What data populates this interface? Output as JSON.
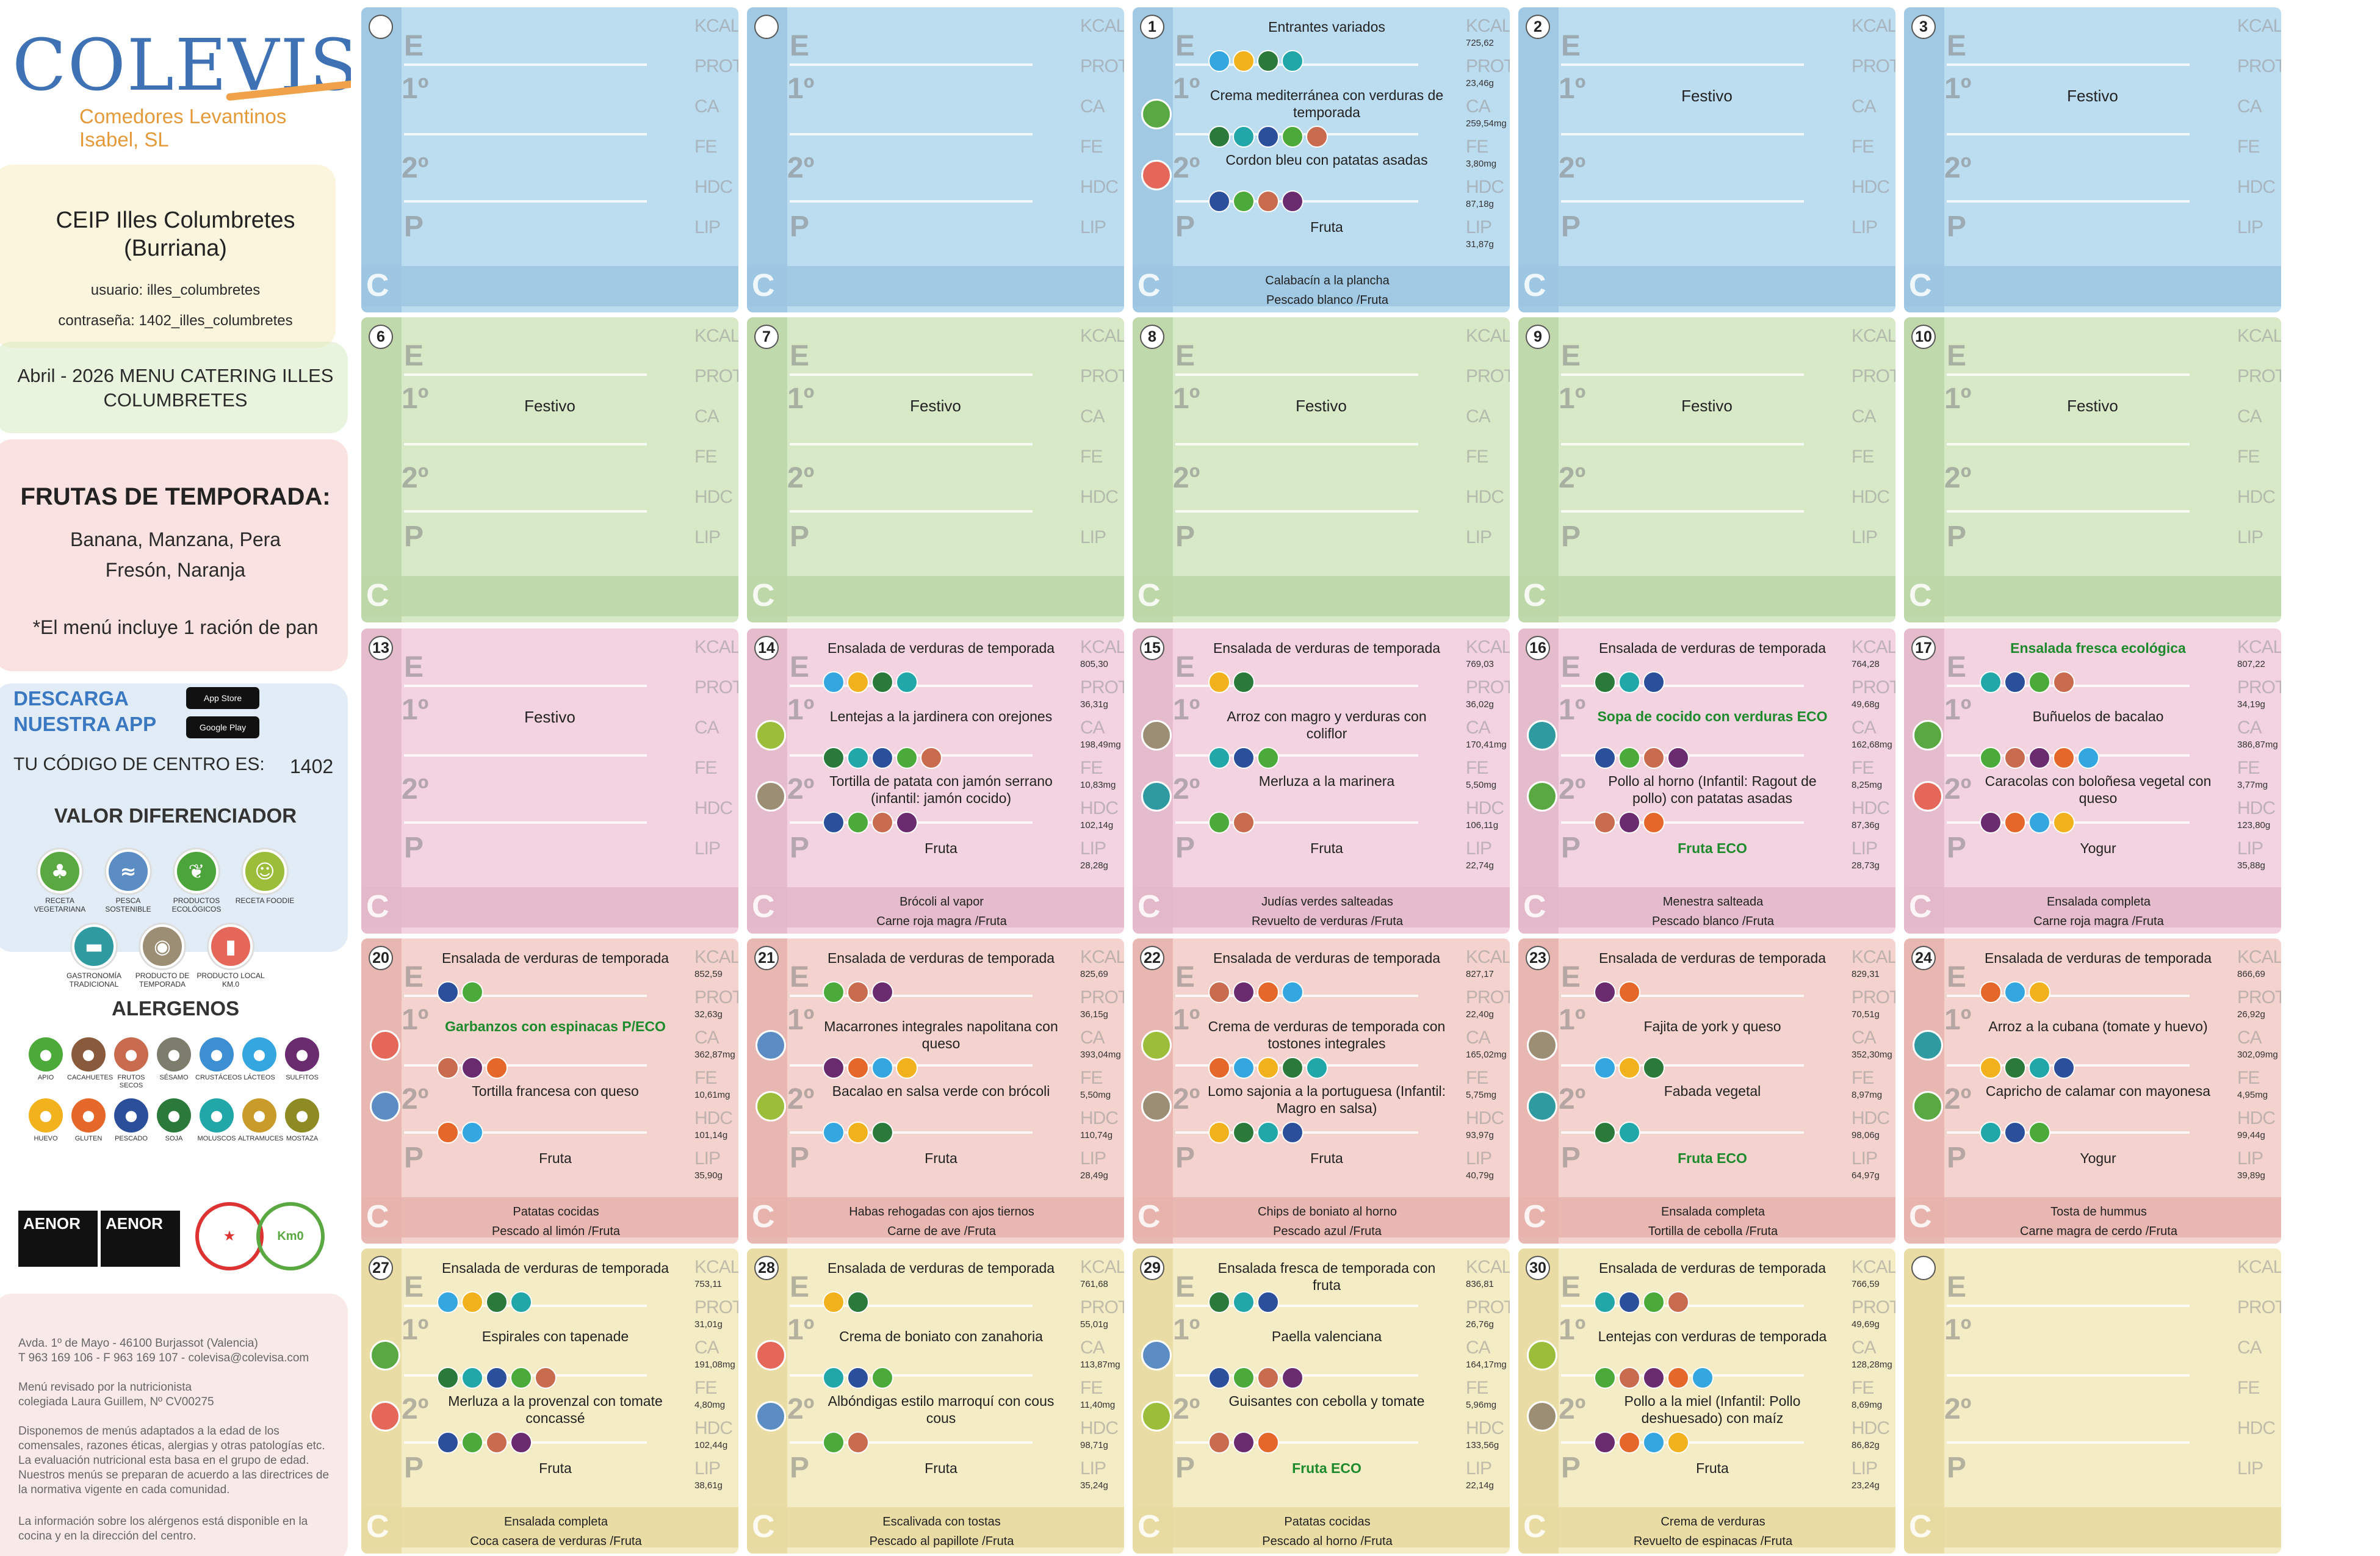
{
  "header": {
    "brand": "COLEVISA",
    "brand_sub": "Comedores Levantinos Isabel, SL",
    "school_line1": "CEIP Illes Columbretes",
    "school_line2": "(Burriana)",
    "user": "usuario: illes_columbretes",
    "password": "contraseña: 1402_illes_columbretes",
    "menu_title": "Abril - 2026 MENU CATERING ILLES COLUMBRETES"
  },
  "fruits": {
    "title": "FRUTAS DE TEMPORADA:",
    "line1": "Banana, Manzana, Pera",
    "line2": "Fresón, Naranja",
    "note": "*El menú incluye 1 ración de pan"
  },
  "app": {
    "title1": "DESCARGA",
    "title2": "NUESTRA APP",
    "appstore": "App Store",
    "googleplay": "Google Play",
    "code_label": "TU CÓDIGO DE CENTRO ES:",
    "code": "1402"
  },
  "valor": {
    "title": "VALOR DIFERENCIADOR",
    "items": [
      {
        "label": "RECETA VEGETARIANA",
        "icon": "broccoli-icon",
        "color": "#5aa842"
      },
      {
        "label": "PESCA SOSTENIBLE",
        "icon": "fish-icon",
        "color": "#5b8cc4"
      },
      {
        "label": "PRODUCTOS ECOLÓGICOS",
        "icon": "leaf-icon",
        "color": "#4ca53a"
      },
      {
        "label": "RECETA FOODIE",
        "icon": "chef-icon",
        "color": "#9bbd3a"
      },
      {
        "label": "GASTRONOMÍA TRADICIONAL",
        "icon": "pot-icon",
        "color": "#2f9aa0"
      },
      {
        "label": "PRODUCTO DE TEMPORADA",
        "icon": "basket-icon",
        "color": "#9c8e74"
      },
      {
        "label": "PRODUCTO LOCAL KM.0",
        "icon": "jar-icon",
        "color": "#e5675a"
      }
    ]
  },
  "alergenos": {
    "title": "ALERGENOS",
    "items": [
      {
        "label": "APIO",
        "color": "#4caa3a"
      },
      {
        "label": "CACAHUETES",
        "color": "#8a5a3c"
      },
      {
        "label": "FRUTOS SECOS",
        "color": "#c96b4e"
      },
      {
        "label": "SÉSAMO",
        "color": "#7d7d6e"
      },
      {
        "label": "CRUSTÁCEOS",
        "color": "#3b8fd2"
      },
      {
        "label": "LÁCTEOS",
        "color": "#34a6e0"
      },
      {
        "label": "SULFITOS",
        "color": "#6b2c6f"
      },
      {
        "label": "HUEVO",
        "color": "#f2b21e"
      },
      {
        "label": "GLUTEN",
        "color": "#e5682a"
      },
      {
        "label": "PESCADO",
        "color": "#2c4f9c"
      },
      {
        "label": "SOJA",
        "color": "#2b7a3c"
      },
      {
        "label": "MOLUSCOS",
        "color": "#21a7a8"
      },
      {
        "label": "ALTRAMUCES",
        "color": "#c99b2a"
      },
      {
        "label": "MOSTAZA",
        "color": "#8e8a24"
      }
    ]
  },
  "certs": {
    "aenor1": "AENOR",
    "aenor2": "AENOR",
    "km0": "Km0"
  },
  "footer": {
    "address": "Avda. 1º de Mayo - 46100 Burjassot (Valencia)",
    "phone": "T 963 169 106 - F 963 169 107 - colevisa@colevisa.com",
    "reviewed1": "Menú revisado por la nutricionista",
    "reviewed2": "colegiada Laura Guillem, Nº CV00275",
    "disclaimer": "Disponemos de menús adaptados a la edad de los comensales, razones éticas, alergias y otras patologías etc. La evaluación nutricional esta basa en el grupo de edad. Nuestros menús se preparan de acuerdo a las directrices de la normativa vigente en cada comunidad.",
    "allergen_info": "La información sobre los alérgenos está disponible en la cocina y en la dirección del centro."
  },
  "row_labels": {
    "e": "E",
    "p1": "1º",
    "p2": "2º",
    "p": "P",
    "c": "C"
  },
  "nut_labels": [
    "KCAL",
    "PROT",
    "CA",
    "FE",
    "HDC",
    "LIP"
  ],
  "days": [
    {
      "num": "",
      "festivo": "",
      "e": "",
      "p1": "",
      "p2": "",
      "p": "",
      "c1": "",
      "c2": "",
      "nut": []
    },
    {
      "num": "",
      "festivo": "",
      "e": "",
      "p1": "",
      "p2": "",
      "p": "",
      "c1": "",
      "c2": "",
      "nut": []
    },
    {
      "num": "1",
      "festivo": "",
      "e": "Entrantes variados",
      "p1": "Crema mediterránea con verduras de temporada",
      "p2": "Cordon bleu con patatas asadas",
      "p": "Fruta",
      "c1": "Calabacín a la plancha",
      "c2": "Pescado blanco /Fruta",
      "nut": [
        "725,62",
        "23,46g",
        "259,54mg",
        "3,80mg",
        "87,18g",
        "31,87g"
      ]
    },
    {
      "num": "2",
      "festivo": "Festivo",
      "e": "",
      "p1": "",
      "p2": "",
      "p": "",
      "c1": "",
      "c2": "",
      "nut": []
    },
    {
      "num": "3",
      "festivo": "Festivo",
      "e": "",
      "p1": "",
      "p2": "",
      "p": "",
      "c1": "",
      "c2": "",
      "nut": []
    },
    {
      "num": "6",
      "festivo": "Festivo",
      "e": "",
      "p1": "",
      "p2": "",
      "p": "",
      "c1": "",
      "c2": "",
      "nut": []
    },
    {
      "num": "7",
      "festivo": "Festivo",
      "e": "",
      "p1": "",
      "p2": "",
      "p": "",
      "c1": "",
      "c2": "",
      "nut": []
    },
    {
      "num": "8",
      "festivo": "Festivo",
      "e": "",
      "p1": "",
      "p2": "",
      "p": "",
      "c1": "",
      "c2": "",
      "nut": []
    },
    {
      "num": "9",
      "festivo": "Festivo",
      "e": "",
      "p1": "",
      "p2": "",
      "p": "",
      "c1": "",
      "c2": "",
      "nut": []
    },
    {
      "num": "10",
      "festivo": "Festivo",
      "e": "",
      "p1": "",
      "p2": "",
      "p": "",
      "c1": "",
      "c2": "",
      "nut": []
    },
    {
      "num": "13",
      "festivo": "Festivo",
      "e": "",
      "p1": "",
      "p2": "",
      "p": "",
      "c1": "",
      "c2": "",
      "nut": []
    },
    {
      "num": "14",
      "festivo": "",
      "e": "Ensalada de verduras de temporada",
      "p1": "Lentejas a la jardinera con orejones",
      "p2": "Tortilla de patata con jamón serrano (infantil: jamón cocido)",
      "p": "Fruta",
      "c1": "Brócoli al vapor",
      "c2": "Carne roja magra /Fruta",
      "nut": [
        "805,30",
        "36,31g",
        "198,49mg",
        "10,83mg",
        "102,14g",
        "28,28g"
      ]
    },
    {
      "num": "15",
      "festivo": "",
      "e": "Ensalada de verduras de temporada",
      "p1": "Arroz con magro y verduras con coliflor",
      "p2": "Merluza a la marinera",
      "p": "Fruta",
      "c1": "Judías verdes salteadas",
      "c2": "Revuelto de verduras /Fruta",
      "nut": [
        "769,03",
        "36,02g",
        "170,41mg",
        "5,50mg",
        "106,11g",
        "22,74g"
      ]
    },
    {
      "num": "16",
      "festivo": "",
      "e": "Ensalada de verduras de temporada",
      "p1": "Sopa de cocido con verduras ECO",
      "p2": "Pollo al horno (Infantil: Ragout de pollo) con patatas asadas",
      "p": "Fruta ECO",
      "c1": "Menestra salteada",
      "c2": "Pescado blanco /Fruta",
      "nut": [
        "764,28",
        "49,68g",
        "162,68mg",
        "8,25mg",
        "87,36g",
        "28,73g"
      ]
    },
    {
      "num": "17",
      "festivo": "",
      "e": "Ensalada fresca ecológica",
      "p1": "Buñuelos de bacalao",
      "p2": "Caracolas con boloñesa vegetal con queso",
      "p": "Yogur",
      "c1": "Ensalada completa",
      "c2": "Carne roja magra /Fruta",
      "nut": [
        "807,22",
        "34,19g",
        "386,87mg",
        "3,77mg",
        "123,80g",
        "35,88g"
      ]
    },
    {
      "num": "20",
      "festivo": "",
      "e": "Ensalada de verduras de temporada",
      "p1": "Garbanzos con espinacas P/ECO",
      "p2": "Tortilla francesa con queso",
      "p": "Fruta",
      "c1": "Patatas cocidas",
      "c2": "Pescado al limón /Fruta",
      "nut": [
        "852,59",
        "32,63g",
        "362,87mg",
        "10,61mg",
        "101,14g",
        "35,90g"
      ]
    },
    {
      "num": "21",
      "festivo": "",
      "e": "Ensalada de verduras de temporada",
      "p1": "Macarrones integrales napolitana con queso",
      "p2": "Bacalao en salsa verde con brócoli",
      "p": "Fruta",
      "c1": "Habas rehogadas con ajos tiernos",
      "c2": "Carne de ave /Fruta",
      "nut": [
        "825,69",
        "36,15g",
        "393,04mg",
        "5,50mg",
        "110,74g",
        "28,49g"
      ]
    },
    {
      "num": "22",
      "festivo": "",
      "e": "Ensalada de verduras de temporada",
      "p1": "Crema de verduras de temporada con tostones integrales",
      "p2": "Lomo sajonia a la portuguesa (Infantil: Magro en salsa)",
      "p": "Fruta",
      "c1": "Chips de boniato al horno",
      "c2": "Pescado azul /Fruta",
      "nut": [
        "827,17",
        "22,40g",
        "165,02mg",
        "5,75mg",
        "93,97g",
        "40,79g"
      ]
    },
    {
      "num": "23",
      "festivo": "",
      "e": "Ensalada de verduras de temporada",
      "p1": "Fajita de york y queso",
      "p2": "Fabada vegetal",
      "p": "Fruta ECO",
      "c1": "Ensalada completa",
      "c2": "Tortilla de cebolla /Fruta",
      "nut": [
        "829,31",
        "70,51g",
        "352,30mg",
        "8,97mg",
        "98,06g",
        "64,97g"
      ]
    },
    {
      "num": "24",
      "festivo": "",
      "e": "Ensalada de verduras de temporada",
      "p1": "Arroz a la cubana (tomate y huevo)",
      "p2": "Capricho de calamar con mayonesa",
      "p": "Yogur",
      "c1": "Tosta de hummus",
      "c2": "Carne magra de cerdo /Fruta",
      "nut": [
        "866,69",
        "26,92g",
        "302,09mg",
        "4,95mg",
        "99,44g",
        "39,89g"
      ]
    },
    {
      "num": "27",
      "festivo": "",
      "e": "Ensalada de verduras de temporada",
      "p1": "Espirales con tapenade",
      "p2": "Merluza a la provenzal con tomate concassé",
      "p": "Fruta",
      "c1": "Ensalada completa",
      "c2": "Coca casera de verduras /Fruta",
      "nut": [
        "753,11",
        "31,01g",
        "191,08mg",
        "4,80mg",
        "102,44g",
        "38,61g"
      ]
    },
    {
      "num": "28",
      "festivo": "",
      "e": "Ensalada de verduras de temporada",
      "p1": "Crema de boniato con zanahoria",
      "p2": "Albóndigas estilo marroquí con cous cous",
      "p": "Fruta",
      "c1": "Escalivada con tostas",
      "c2": "Pescado al papillote /Fruta",
      "nut": [
        "761,68",
        "55,01g",
        "113,87mg",
        "11,40mg",
        "98,71g",
        "35,24g"
      ]
    },
    {
      "num": "29",
      "festivo": "",
      "e": "Ensalada fresca de temporada con fruta",
      "p1": "Paella valenciana",
      "p2": "Guisantes con cebolla y tomate",
      "p": "Fruta ECO",
      "c1": "Patatas cocidas",
      "c2": "Pescado al horno /Fruta",
      "nut": [
        "836,81",
        "26,76g",
        "164,17mg",
        "5,96mg",
        "133,56g",
        "22,14g"
      ]
    },
    {
      "num": "30",
      "festivo": "",
      "e": "Ensalada de verduras de temporada",
      "p1": "Lentejas con verduras de temporada",
      "p2": "Pollo a la miel (Infantil: Pollo deshuesado) con maíz",
      "p": "Fruta",
      "c1": "Crema de verduras",
      "c2": "Revuelto de espinacas /Fruta",
      "nut": [
        "766,59",
        "49,69g",
        "128,28mg",
        "8,69mg",
        "86,82g",
        "23,24g"
      ]
    },
    {
      "num": "",
      "festivo": "",
      "e": "",
      "p1": "",
      "p2": "",
      "p": "",
      "c1": "",
      "c2": "",
      "nut": []
    }
  ],
  "colors": {
    "week1": "#bcdcf0",
    "week1_dark": "#9cc6e2",
    "week2": "#d8e9c8",
    "week2_dark": "#bcd6a7",
    "week3": "#f2d3df",
    "week3_dark": "#e3b7c8",
    "week4": "#f4d2cd",
    "week4_dark": "#e6b3ab",
    "week5": "#f4ecc4",
    "week5_dark": "#e6daa0",
    "dish_green": "#1d8a2d"
  }
}
